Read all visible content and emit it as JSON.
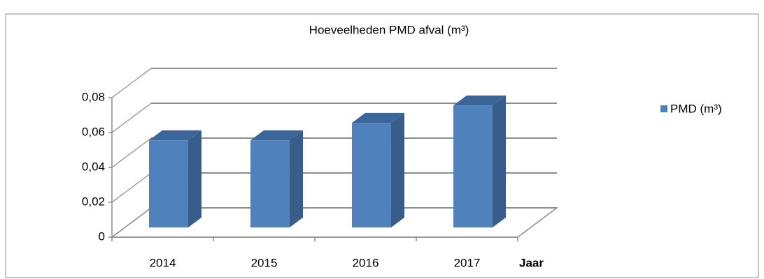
{
  "chart_data": {
    "type": "bar3d",
    "title": "Hoeveelheden PMD afval (m³)",
    "x_label": "Jaar",
    "categories": [
      "2014",
      "2015",
      "2016",
      "2017"
    ],
    "series": [
      {
        "name": "PMD (m³)",
        "color": "#4f81bd",
        "values": [
          0.05,
          0.05,
          0.06,
          0.07
        ]
      }
    ],
    "ylim": [
      0,
      0.08
    ],
    "yticks": [
      0,
      {
        "value": 0.02,
        "label": "0,02"
      },
      {
        "value": 0.04,
        "label": "0,04"
      },
      {
        "value": 0.06,
        "label": "0,06"
      },
      {
        "value": 0.08,
        "label": "0,08"
      }
    ],
    "grid": true,
    "legend": "right"
  }
}
